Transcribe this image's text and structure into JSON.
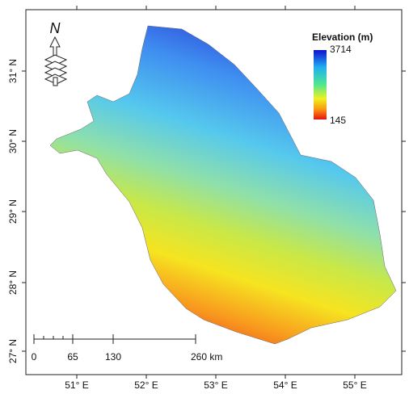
{
  "map": {
    "north": "N",
    "legend": {
      "title": "Elevation (m)",
      "max": 3714,
      "min": 145
    },
    "lat_labels": [
      "31° N",
      "30° N",
      "29° N",
      "28° N",
      "27° N"
    ],
    "lon_labels": [
      "51° E",
      "52° E",
      "53° E",
      "54° E",
      "55° E"
    ],
    "scale_bar": [
      "0",
      "65",
      "130",
      "260 km"
    ]
  }
}
